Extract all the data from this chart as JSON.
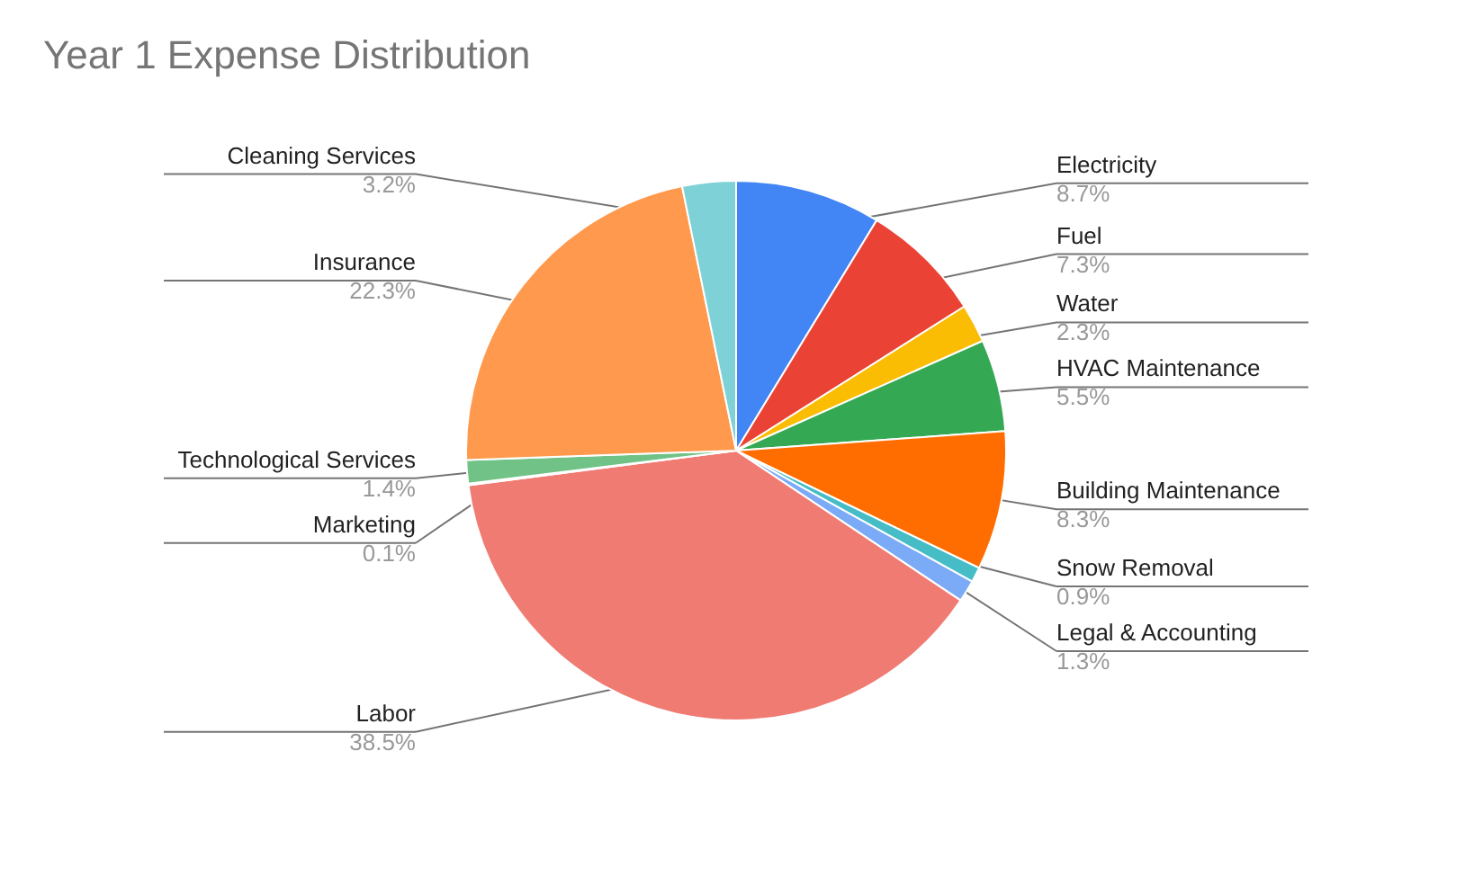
{
  "chart_data": {
    "type": "pie",
    "title": "Year 1 Expense Distribution",
    "categories": [
      "Electricity",
      "Fuel",
      "Water",
      "HVAC Maintenance",
      "Building Maintenance",
      "Snow Removal",
      "Legal & Accounting",
      "Labor",
      "Marketing",
      "Technological Services",
      "Insurance",
      "Cleaning Services"
    ],
    "values": [
      8.7,
      7.3,
      2.3,
      5.5,
      8.3,
      0.9,
      1.3,
      38.5,
      0.1,
      1.4,
      22.3,
      3.2
    ],
    "value_labels": [
      "8.7%",
      "7.3%",
      "2.3%",
      "5.5%",
      "8.3%",
      "0.9%",
      "1.3%",
      "38.5%",
      "0.1%",
      "1.4%",
      "22.3%",
      "3.2%"
    ],
    "colors": [
      "#4285f4",
      "#ea4335",
      "#fbbc04",
      "#34a853",
      "#ff6d01",
      "#46bdc6",
      "#7baaf7",
      "#f07b72",
      "#fcd04f",
      "#71c287",
      "#ff994d",
      "#7ed1d7"
    ]
  }
}
